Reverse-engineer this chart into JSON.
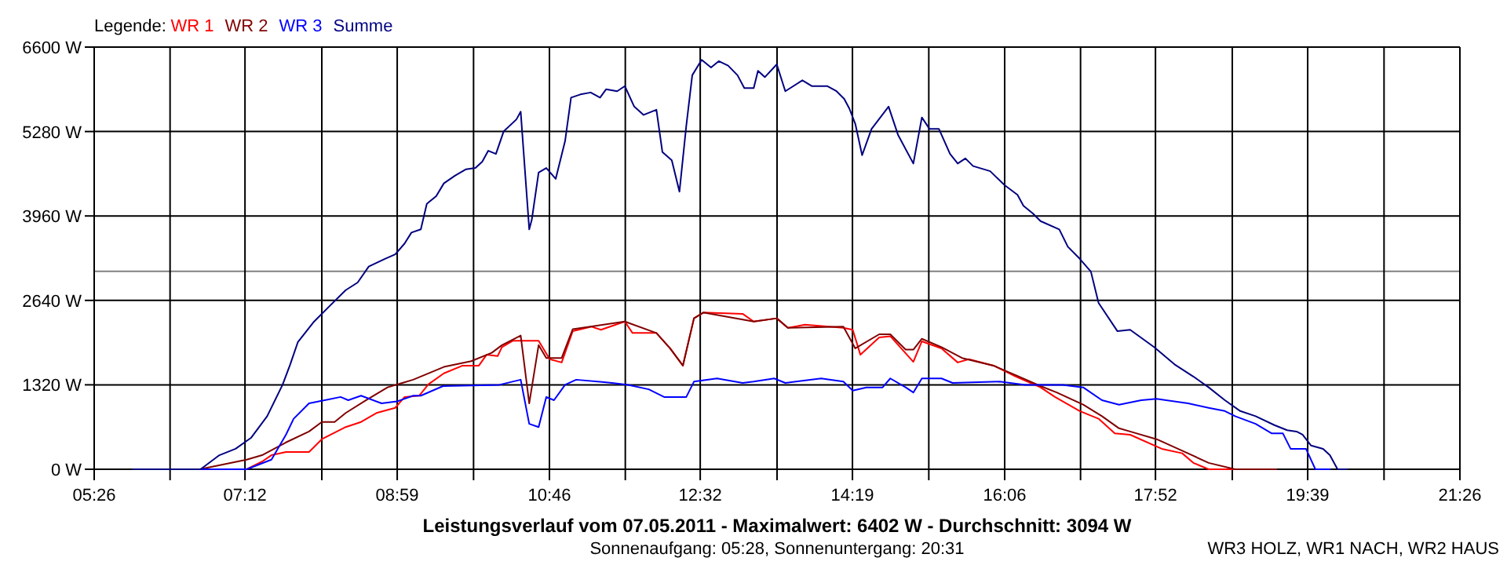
{
  "chart_data": {
    "type": "line",
    "title": "Leistungsverlauf vom 07.05.2011 - Maximalwert: 6402 W - Durchschnitt: 3094 W",
    "subtitle": "Sonnenaufgang: 05:28, Sonnenuntergang: 20:31",
    "annotations": [
      "WR3 HOLZ, WR1 NACH, WR2 HAUS"
    ],
    "legend_title": "Legende:",
    "legend": "top left",
    "grid": true,
    "line_style": "solid",
    "xlim": [
      5.4333,
      21.4333
    ],
    "xticks": [
      {
        "value": 5.4333,
        "label": "05:26"
      },
      {
        "value": 6.3222,
        "label": null
      },
      {
        "value": 7.2,
        "label": "07:12"
      },
      {
        "value": 8.1,
        "label": null
      },
      {
        "value": 8.9833,
        "label": "08:59"
      },
      {
        "value": 9.8778,
        "label": null
      },
      {
        "value": 10.7667,
        "label": "10:46"
      },
      {
        "value": 11.6556,
        "label": null
      },
      {
        "value": 12.5333,
        "label": "12:32"
      },
      {
        "value": 13.4333,
        "label": null
      },
      {
        "value": 14.3167,
        "label": "14:19"
      },
      {
        "value": 15.2111,
        "label": null
      },
      {
        "value": 16.1,
        "label": "16:06"
      },
      {
        "value": 16.9889,
        "label": null
      },
      {
        "value": 17.8667,
        "label": "17:52"
      },
      {
        "value": 18.7667,
        "label": null
      },
      {
        "value": 19.65,
        "label": "19:39"
      },
      {
        "value": 20.5444,
        "label": null
      },
      {
        "value": 21.4333,
        "label": "21:26"
      }
    ],
    "ylim": [
      0,
      6600
    ],
    "yticks": [
      {
        "value": 0,
        "label": "0 W"
      },
      {
        "value": 1320,
        "label": "1320 W"
      },
      {
        "value": 2640,
        "label": "2640 W"
      },
      {
        "value": 3960,
        "label": "3960 W"
      },
      {
        "value": 5280,
        "label": "5280 W"
      },
      {
        "value": 6600,
        "label": "6600 W"
      }
    ],
    "ref_lines": [
      {
        "axis": "y",
        "value": 3094,
        "color": "#808080"
      }
    ],
    "series": [
      {
        "name": "WR 1",
        "color": "#ff0000",
        "x": [
          6.17,
          7.22,
          7.4,
          7.51,
          7.68,
          7.95,
          8.1,
          8.38,
          8.56,
          8.74,
          8.96,
          9.07,
          9.24,
          9.35,
          9.53,
          9.75,
          9.94,
          10.03,
          10.16,
          10.21,
          10.34,
          10.64,
          10.77,
          10.91,
          11.04,
          11.26,
          11.37,
          11.65,
          11.74,
          12.02,
          12.18,
          12.33,
          12.46,
          12.57,
          13.03,
          13.16,
          13.43,
          13.56,
          13.76,
          14.21,
          14.32,
          14.41,
          14.63,
          14.76,
          15.03,
          15.13,
          15.36,
          15.55,
          15.68,
          15.97,
          16.23,
          16.52,
          16.69,
          16.98,
          17.2,
          17.39,
          17.57,
          17.94,
          18.18,
          18.31,
          18.49,
          19.28
        ],
        "values": [
          0,
          0,
          120,
          220,
          270,
          270,
          470,
          660,
          740,
          880,
          960,
          1130,
          1150,
          1330,
          1500,
          1620,
          1620,
          1790,
          1770,
          1910,
          2010,
          2010,
          1720,
          1670,
          2160,
          2230,
          2180,
          2310,
          2130,
          2130,
          1890,
          1620,
          2360,
          2450,
          2430,
          2310,
          2360,
          2210,
          2260,
          2210,
          2180,
          1790,
          2060,
          2080,
          1680,
          2000,
          1890,
          1670,
          1720,
          1620,
          1450,
          1280,
          1130,
          910,
          790,
          560,
          540,
          320,
          250,
          100,
          0,
          0
        ]
      },
      {
        "name": "WR 2",
        "color": "#800000",
        "x": [
          6.67,
          7.22,
          7.4,
          7.68,
          7.95,
          8.1,
          8.25,
          8.38,
          8.62,
          8.87,
          9.17,
          9.53,
          9.85,
          10.09,
          10.21,
          10.43,
          10.53,
          10.64,
          10.73,
          10.91,
          11.04,
          11.65,
          12.02,
          12.18,
          12.33,
          12.46,
          12.57,
          13.16,
          13.43,
          13.56,
          14.21,
          14.35,
          14.63,
          14.76,
          14.94,
          15.03,
          15.13,
          15.36,
          15.6,
          15.97,
          16.23,
          16.52,
          16.71,
          17.02,
          17.24,
          17.44,
          17.57,
          17.88,
          18.18,
          18.49,
          18.8,
          19.28
        ],
        "values": [
          0,
          150,
          220,
          420,
          590,
          740,
          740,
          880,
          1080,
          1280,
          1400,
          1600,
          1690,
          1820,
          1940,
          2090,
          1030,
          1940,
          1740,
          1740,
          2190,
          2310,
          2130,
          1890,
          1620,
          2360,
          2450,
          2310,
          2360,
          2210,
          2230,
          1890,
          2110,
          2110,
          1870,
          1870,
          2040,
          1910,
          1740,
          1620,
          1470,
          1300,
          1200,
          1010,
          830,
          640,
          590,
          470,
          290,
          100,
          0,
          0
        ]
      },
      {
        "name": "WR 3",
        "color": "#0000ff",
        "x": [
          5.89,
          6.67,
          7.22,
          7.51,
          7.68,
          7.77,
          7.95,
          8.32,
          8.41,
          8.56,
          8.8,
          8.98,
          9.17,
          9.26,
          9.52,
          10.18,
          10.43,
          10.53,
          10.64,
          10.73,
          10.82,
          10.95,
          11.08,
          11.5,
          11.69,
          11.93,
          12.11,
          12.37,
          12.46,
          12.73,
          13.03,
          13.16,
          13.4,
          13.53,
          13.95,
          14.21,
          14.32,
          14.48,
          14.67,
          14.76,
          14.94,
          15.03,
          15.13,
          15.36,
          15.49,
          16.04,
          16.34,
          16.78,
          17.02,
          17.24,
          17.44,
          17.7,
          17.88,
          18.25,
          18.49,
          18.68,
          18.8,
          19.04,
          19.23,
          19.36,
          19.45,
          19.63,
          19.74,
          19.91
        ],
        "values": [
          0,
          0,
          0,
          150,
          540,
          790,
          1030,
          1130,
          1080,
          1150,
          1030,
          1060,
          1150,
          1150,
          1300,
          1320,
          1400,
          710,
          660,
          1130,
          1080,
          1320,
          1400,
          1350,
          1320,
          1250,
          1130,
          1130,
          1370,
          1420,
          1350,
          1370,
          1420,
          1350,
          1420,
          1370,
          1230,
          1280,
          1280,
          1420,
          1280,
          1200,
          1420,
          1420,
          1350,
          1370,
          1320,
          1320,
          1280,
          1080,
          1010,
          1080,
          1100,
          1030,
          960,
          910,
          830,
          710,
          560,
          560,
          320,
          320,
          0,
          0
        ]
      },
      {
        "name": "Summe",
        "color": "#000080",
        "x": [
          5.89,
          6.68,
          6.9,
          7.09,
          7.27,
          7.46,
          7.64,
          7.73,
          7.82,
          8.01,
          8.19,
          8.38,
          8.52,
          8.65,
          8.84,
          8.96,
          9.07,
          9.15,
          9.26,
          9.33,
          9.44,
          9.53,
          9.66,
          9.79,
          9.9,
          9.98,
          10.05,
          10.14,
          10.23,
          10.38,
          10.43,
          10.53,
          10.56,
          10.64,
          10.73,
          10.84,
          10.95,
          11.02,
          11.13,
          11.25,
          11.36,
          11.43,
          11.56,
          11.65,
          11.76,
          11.87,
          12.02,
          12.09,
          12.2,
          12.29,
          12.37,
          12.44,
          12.55,
          12.66,
          12.75,
          12.86,
          12.97,
          13.05,
          13.16,
          13.21,
          13.29,
          13.43,
          13.53,
          13.73,
          13.84,
          14.02,
          14.13,
          14.22,
          14.28,
          14.35,
          14.43,
          14.54,
          14.74,
          14.85,
          15.03,
          15.13,
          15.22,
          15.33,
          15.46,
          15.55,
          15.64,
          15.73,
          15.93,
          16.1,
          16.25,
          16.32,
          16.43,
          16.52,
          16.74,
          16.84,
          16.98,
          17.11,
          17.2,
          17.42,
          17.57,
          17.85,
          18.09,
          18.31,
          18.49,
          18.68,
          18.86,
          19.04,
          19.26,
          19.41,
          19.52,
          19.59,
          19.69,
          19.83,
          19.91,
          20.0,
          20.11
        ],
        "values": [
          0,
          0,
          220,
          320,
          490,
          830,
          1320,
          1640,
          1990,
          2310,
          2550,
          2800,
          2920,
          3170,
          3290,
          3360,
          3530,
          3700,
          3750,
          4150,
          4270,
          4470,
          4590,
          4690,
          4710,
          4810,
          4980,
          4930,
          5280,
          5470,
          5590,
          3750,
          3900,
          4640,
          4710,
          4540,
          5130,
          5810,
          5860,
          5890,
          5810,
          5940,
          5910,
          5990,
          5670,
          5540,
          5620,
          4960,
          4830,
          4340,
          5370,
          6160,
          6400,
          6280,
          6380,
          6310,
          6160,
          5960,
          5960,
          6230,
          6130,
          6330,
          5910,
          6080,
          5990,
          5990,
          5910,
          5790,
          5640,
          5400,
          4910,
          5320,
          5670,
          5230,
          4780,
          5500,
          5320,
          5320,
          4930,
          4780,
          4860,
          4740,
          4660,
          4440,
          4290,
          4120,
          4000,
          3880,
          3750,
          3480,
          3290,
          3090,
          2600,
          2160,
          2180,
          1910,
          1640,
          1450,
          1280,
          1080,
          910,
          830,
          690,
          610,
          590,
          540,
          370,
          320,
          220,
          0,
          0
        ]
      }
    ]
  }
}
